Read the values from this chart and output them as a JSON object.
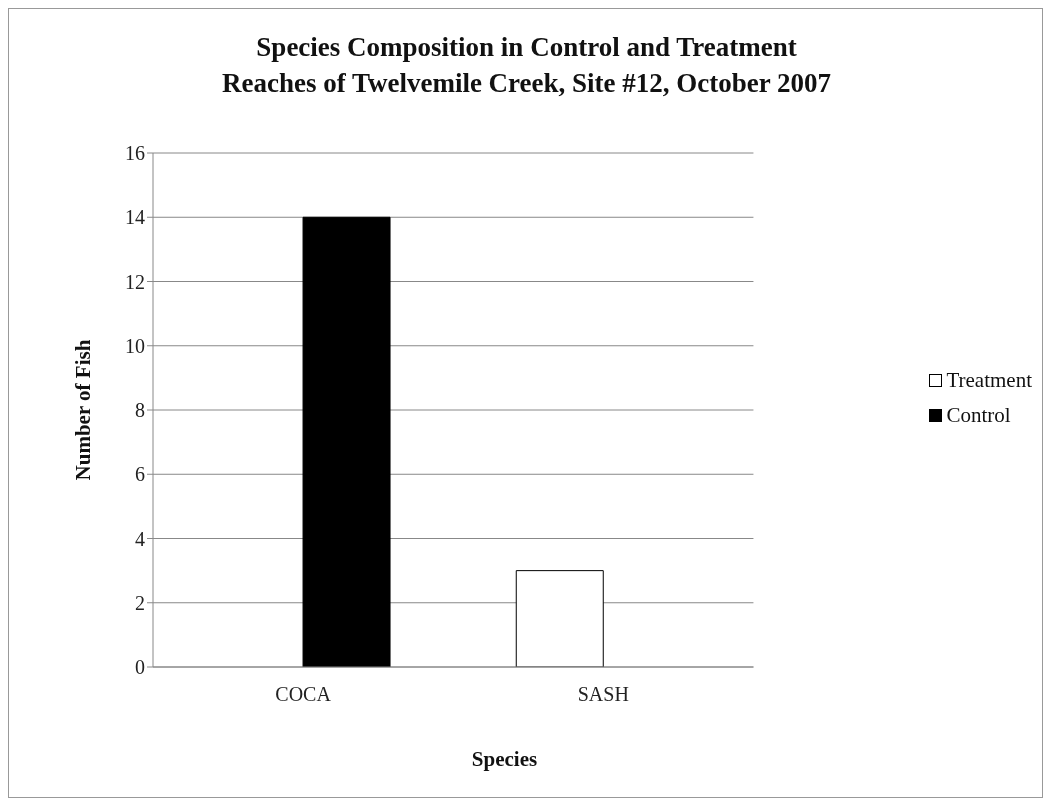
{
  "chart_data": {
    "type": "bar",
    "title": "Species Composition in Control and Treatment\nReaches  of Twelvemile Creek, Site #12, October 2007",
    "xlabel": "Species",
    "ylabel": "Number of Fish",
    "categories": [
      "COCA",
      "SASH"
    ],
    "series": [
      {
        "name": "Treatment",
        "color": "#ffffff",
        "values": [
          0,
          3
        ]
      },
      {
        "name": "Control",
        "color": "#000000",
        "values": [
          14,
          0
        ]
      }
    ],
    "ylim": [
      0,
      16
    ],
    "yticks": [
      0,
      2,
      4,
      6,
      8,
      10,
      12,
      14,
      16
    ],
    "grid": "y",
    "legend": "right"
  }
}
